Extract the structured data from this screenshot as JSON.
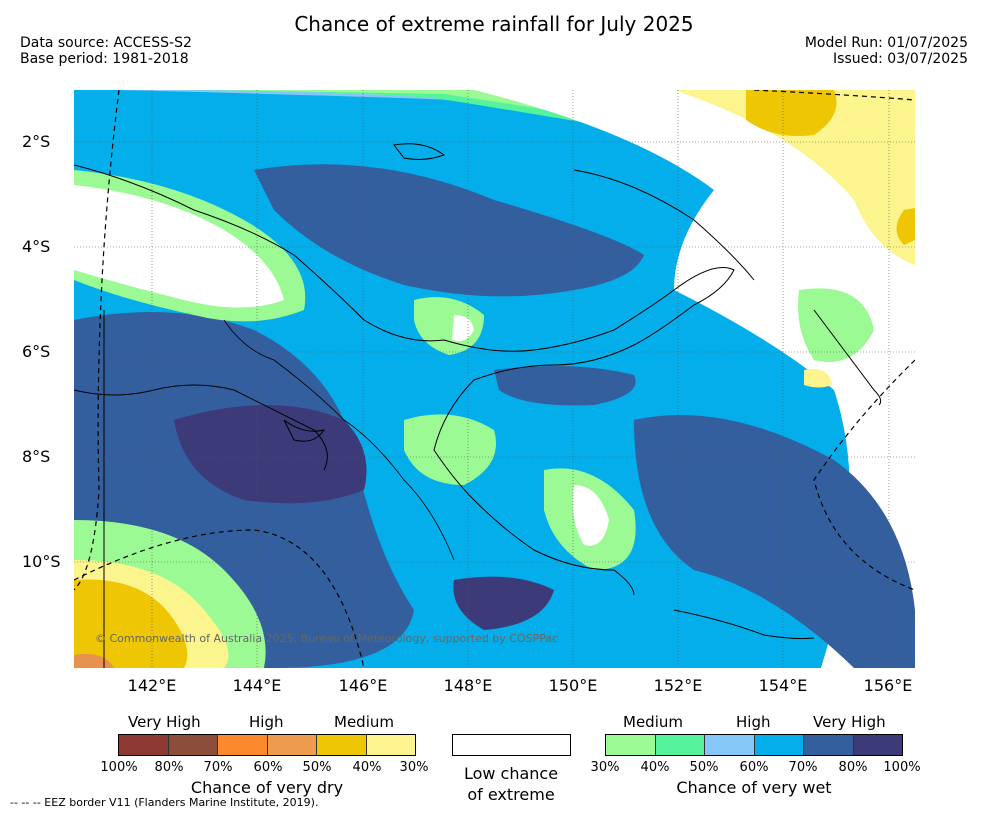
{
  "header": {
    "title": "Chance of extreme rainfall for July 2025",
    "data_source": "Data source: ACCESS-S2",
    "base_period": "Base period: 1981-2018",
    "model_run": "Model Run: 01/07/2025",
    "issued": "Issued: 03/07/2025"
  },
  "map": {
    "lat_labels": [
      "2°S",
      "4°S",
      "6°S",
      "8°S",
      "10°S"
    ],
    "lon_labels": [
      "142°E",
      "144°E",
      "146°E",
      "148°E",
      "150°E",
      "152°E",
      "154°E",
      "156°E"
    ],
    "copyright": "© Commonwealth of Australia 2025, Bureau of Meteorology, supported by COSPPac",
    "colors": {
      "very_wet_very_high": "#3c3a78",
      "very_wet_high": "#335f9e",
      "wet_high": "#04aeea",
      "wet_medium": "#85c8f8",
      "wet_low": "#55f49c",
      "wet_lowest": "#9cfa94",
      "dry_medium": "#eec604",
      "dry_low": "#fcf48c",
      "dry_high": "#e8924e",
      "coast": "#000000"
    }
  },
  "legend": {
    "dry": {
      "levels": [
        "Very High",
        "High",
        "Medium"
      ],
      "colors": [
        "#8c3a32",
        "#8c4e3a",
        "#fc8a2c",
        "#ec9c4c",
        "#eec604",
        "#fcf48c"
      ],
      "ticks": [
        "100%",
        "80%",
        "70%",
        "60%",
        "50%",
        "40%",
        "30%"
      ],
      "caption": "Chance of very dry"
    },
    "low": {
      "caption_line1": "Low chance",
      "caption_line2": "of extreme"
    },
    "wet": {
      "levels": [
        "Medium",
        "High",
        "Very High"
      ],
      "colors": [
        "#9cfa94",
        "#55f49c",
        "#85c8f8",
        "#04aeea",
        "#335f9e",
        "#3c3a78"
      ],
      "ticks": [
        "30%",
        "40%",
        "50%",
        "60%",
        "70%",
        "80%",
        "100%"
      ],
      "caption": "Chance of very wet"
    }
  },
  "footnote": "--  --  -- EEZ border V11 (Flanders Marine Institute, 2019)."
}
